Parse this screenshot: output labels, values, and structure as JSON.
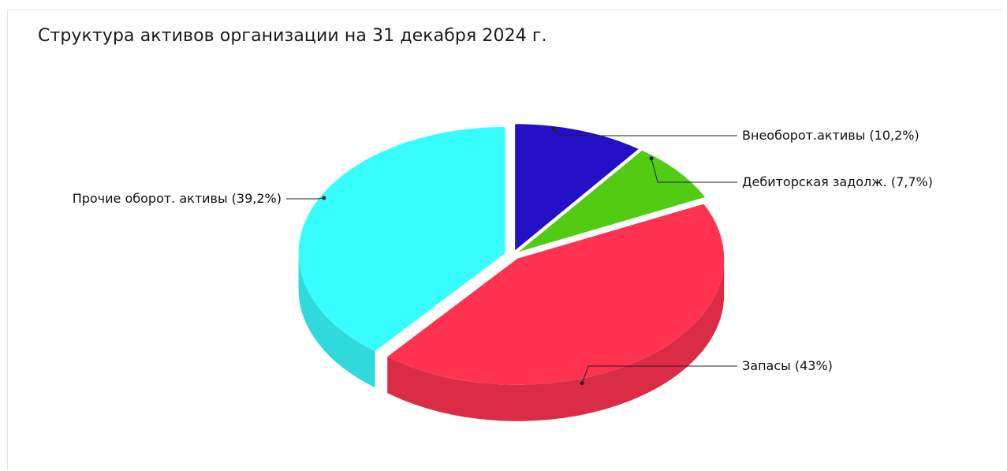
{
  "chart_data": {
    "type": "pie",
    "title": "Структура активов организации на 31 декабря 2024 г.",
    "categories": [
      "Внеоборот.активы",
      "Дебиторская задолж.",
      "Запасы",
      "Прочие оборот. активы"
    ],
    "values": [
      10.2,
      7.7,
      43,
      39.2
    ],
    "labels": [
      "Внеоборот.активы (10,2%)",
      "Дебиторская задолж. (7,7%)",
      "Запасы (43%)",
      "Прочие оборот. активы (39,2%)"
    ],
    "colors": [
      "#2410c6",
      "#52cc13",
      "#ff3350",
      "#38fdff"
    ],
    "three_d": true,
    "exploded": true,
    "legend": "none"
  }
}
